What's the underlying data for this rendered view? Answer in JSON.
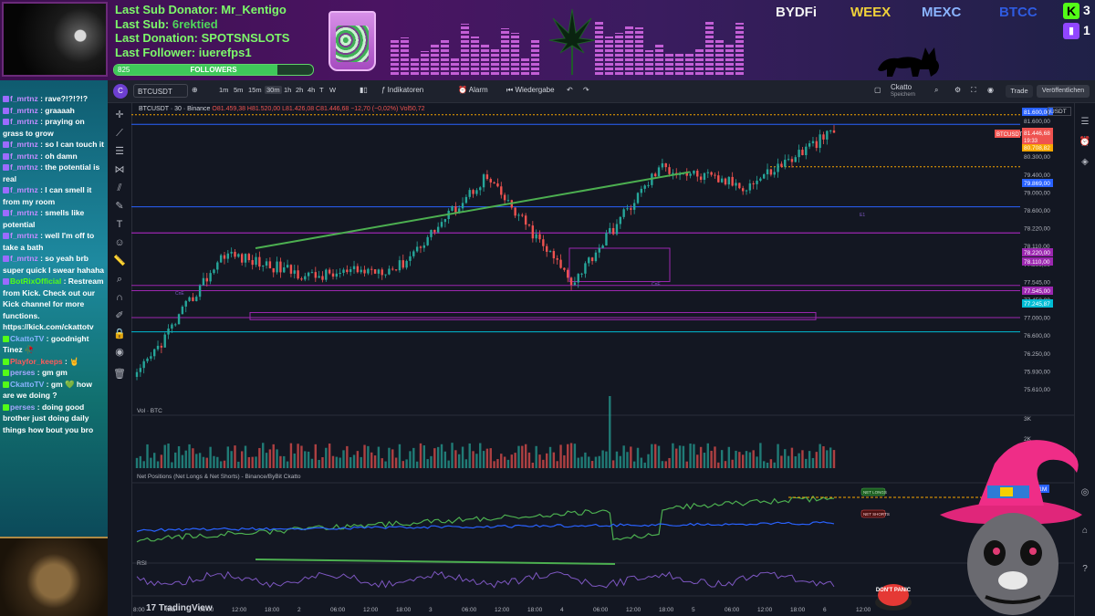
{
  "overlay": {
    "last_sub_donator_label": "Last Sub Donator:",
    "last_sub_donator": "Mr_Kentigo",
    "last_sub_label": "Last Sub:",
    "last_sub": "6rektied",
    "last_donation_label": "Last Donation:",
    "last_donation": "SPOTSNSLOTS",
    "last_follower_label": "Last Follower:",
    "last_follower": "iuerefps1",
    "followers_count": "825",
    "followers_label": "FOLLOWERS",
    "followers_progress": 0.82,
    "sponsors": [
      "BYDFi",
      "WEEX",
      "MEXC",
      "BTCC"
    ],
    "kick_badge": "K",
    "kick_count": "3",
    "twitch_count": "1"
  },
  "chat": [
    {
      "user": "f_mrtnz",
      "text": "rave?!?!?!?",
      "color": "#c28cff",
      "badge": "purple"
    },
    {
      "user": "f_mrtnz",
      "text": "graaaah",
      "color": "#c28cff",
      "badge": "purple"
    },
    {
      "user": "f_mrtnz",
      "text": "praying on grass to grow",
      "color": "#c28cff",
      "badge": "purple"
    },
    {
      "user": "f_mrtnz",
      "text": "so I can touch it",
      "color": "#c28cff",
      "badge": "purple"
    },
    {
      "user": "f_mrtnz",
      "text": "oh damn",
      "color": "#c28cff",
      "badge": "purple"
    },
    {
      "user": "f_mrtnz",
      "text": "the potential is real",
      "color": "#c28cff",
      "badge": "purple"
    },
    {
      "user": "f_mrtnz",
      "text": "I can smell it from my room",
      "color": "#c28cff",
      "badge": "purple"
    },
    {
      "user": "f_mrtnz",
      "text": "smells like potential",
      "color": "#c28cff",
      "badge": "purple"
    },
    {
      "user": "f_mrtnz",
      "text": "well I'm off to take a bath",
      "color": "#c28cff",
      "badge": "purple"
    },
    {
      "user": "f_mrtnz",
      "text": "so yeah brb super quick I swear hahaha",
      "color": "#c28cff",
      "badge": "purple"
    },
    {
      "user": "BotRixOfficial",
      "text": "Restream from Kick. Check out our Kick channel for more functions. https://kick.com/ckattotv",
      "color": "#53fc18",
      "badge": "purple"
    },
    {
      "user": "CkattoTV",
      "text": "goodnight Tinez 🥀",
      "color": "#8ab4ff",
      "badge": "green"
    },
    {
      "user": "Playfor_keeps",
      "text": "🤘",
      "color": "#ff5a5a",
      "badge": "green"
    },
    {
      "user": "perses",
      "text": "gm gm",
      "color": "#a8a8ff",
      "badge": "green"
    },
    {
      "user": "CkattoTV",
      "text": "gm 💚 how are we doing ?",
      "color": "#8ab4ff",
      "badge": "green"
    },
    {
      "user": "perses",
      "text": "doing good brother just doing daily things how bout you bro",
      "color": "#a8a8ff",
      "badge": "green"
    }
  ],
  "tv": {
    "symbol": "BTCUSDT",
    "avatar_letter": "C",
    "timeframes": [
      "1m",
      "5m",
      "15m",
      "30m",
      "1h",
      "2h",
      "4h",
      "T",
      "W"
    ],
    "active_timeframe": "30m",
    "indicators_label": "Indikatoren",
    "alarm_label": "Alarm",
    "replay_label": "Wiedergabe",
    "layout_name": "Ckatto",
    "layout_sub": "Speichern",
    "trade_label": "Trade",
    "publish_label": "Veröffentlichen",
    "currency": "USDT",
    "legend_symbol": "BTCUSDT · 30 · Binance",
    "legend_values": "O81.459,38 H81.520,00 L81.426,08 C81.446,68 −12,70 (−0,02%) Vol50,72",
    "tradingview_label": "TradingView",
    "vol_label": "Vol · BTC",
    "netpos_label": "Net Positions (Net Longs & Net Shorts) - Binance/ByBit Ckatto",
    "rsi_label": "RSI",
    "net_longs_tag": "NET LONGS",
    "net_shorts_tag": "NET SHORTS",
    "net_longs_value": "944,21M",
    "pane_tags": [
      "CnE",
      "CnE",
      "E1"
    ],
    "symbol_price_tag": "BTCUSDT",
    "last_price": "81.446,68",
    "countdown": "19:33",
    "price_axis": [
      "81.600,00",
      "80.800,00",
      "80.300,00",
      "79.400,00",
      "79.000,00",
      "78.600,00",
      "78.220,00",
      "78.110,00",
      "77.800,00",
      "77.545,00",
      "77.450,00",
      "77.000,00",
      "76.600,00",
      "76.250,00",
      "75.930,00",
      "75.610,00"
    ],
    "price_tags": [
      {
        "label": "81.600,00",
        "color": "#2962ff"
      },
      {
        "label": "80.708,82",
        "color": "#f7a600"
      },
      {
        "label": "79.869,00",
        "color": "#2962ff"
      },
      {
        "label": "78.220,00",
        "color": "#9c27b0"
      },
      {
        "label": "78.110,00",
        "color": "#9c27b0"
      },
      {
        "label": "77.545,00",
        "color": "#9c27b0"
      },
      {
        "label": "77.245,87",
        "color": "#00bcd4"
      }
    ],
    "vol_axis": [
      "3K",
      "2K",
      "1K"
    ],
    "time_axis": [
      "8:00",
      "Mai",
      "06:00",
      "12:00",
      "18:00",
      "2",
      "06:00",
      "12:00",
      "18:00",
      "3",
      "06:00",
      "12:00",
      "18:00",
      "4",
      "06:00",
      "12:00",
      "18:00",
      "5",
      "06:00",
      "12:00",
      "18:00",
      "6",
      "12:00"
    ]
  },
  "stream": {
    "donation_button_label": "DON'T PANIC"
  },
  "chart_data": {
    "type": "candlestick",
    "title": "",
    "symbol": "BTCUSDT",
    "interval": "30",
    "exchange": "Binance",
    "x": [
      "Mai 1 08:00",
      "Mai 1 18:00",
      "Mai 2 12:00",
      "Mai 3 06:00",
      "Mai 4 06:00",
      "Mai 4 12:00",
      "Mai 4 18:00",
      "Mai 5 06:00",
      "Mai 5 18:00"
    ],
    "close": [
      76300,
      78900,
      78400,
      78600,
      80500,
      78300,
      80700,
      80300,
      81450
    ],
    "ylim": [
      75610,
      81700
    ],
    "horizontal_levels": [
      81600,
      80708.82,
      79869,
      78220,
      78110,
      77545,
      77245.87
    ],
    "trendlines": [
      "support line from Mai 1 18:00 to Mai 4 18:00 (green)",
      "RSI divergence line (green)"
    ],
    "panes": [
      "price",
      "volume",
      "net positions",
      "RSI"
    ]
  }
}
